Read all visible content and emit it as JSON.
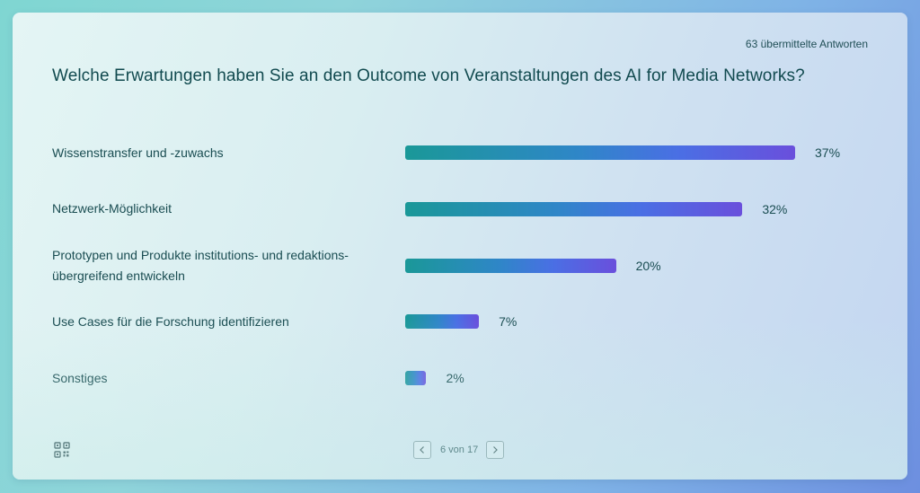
{
  "header": {
    "responses": "63 übermittelte Antworten",
    "question": "Welche Erwartungen haben Sie an den Outcome von Veranstaltungen des AI for Media Networks?"
  },
  "chart_data": {
    "type": "bar",
    "orientation": "horizontal",
    "title": "Welche Erwartungen haben Sie an den Outcome von Veranstaltungen des AI for Media Networks?",
    "categories": [
      [
        "Wissenstransfer und -zuwachs"
      ],
      [
        "Netzwerk-Möglichkeit"
      ],
      [
        "Prototypen und Produkte institutions- und redaktions-",
        "übergreifend entwickeln"
      ],
      [
        "Use Cases für die Forschung identifizieren"
      ],
      [
        "Sonstiges"
      ]
    ],
    "values": [
      37,
      32,
      20,
      7,
      2
    ],
    "labels": [
      "37%",
      "32%",
      "20%",
      "7%",
      "2%"
    ],
    "unit": "%",
    "xlim": [
      0,
      37
    ]
  },
  "pager": {
    "text": "6 von 17",
    "prev_icon": "chevron-left-icon",
    "next_icon": "chevron-right-icon"
  },
  "footer": {
    "qr_icon": "qr-code-icon"
  }
}
